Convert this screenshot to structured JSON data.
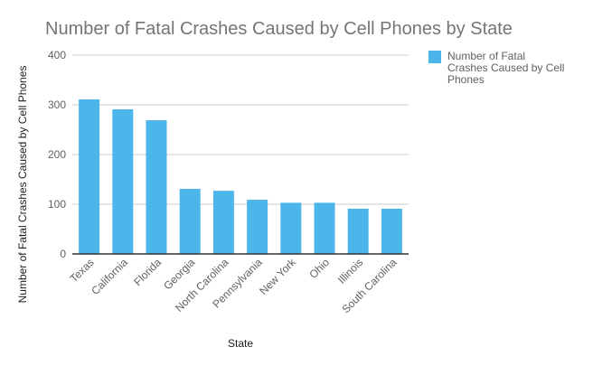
{
  "chart_data": {
    "type": "bar",
    "title": "Number of Fatal Crashes Caused by Cell Phones by State",
    "xlabel": "State",
    "ylabel": "Number of Fatal Crashes Caused by Cell Phones",
    "categories": [
      "Texas",
      "California",
      "Florida",
      "Georgia",
      "North Carolina",
      "Pennsylvania",
      "New York",
      "Ohio",
      "Illinois",
      "South Carolina"
    ],
    "series": [
      {
        "name": "Number of Fatal Crashes Caused by Cell Phones",
        "values": [
          311,
          291,
          269,
          131,
          127,
          109,
          103,
          103,
          91,
          91
        ],
        "color": "#4cb6ea"
      }
    ],
    "ylim": [
      0,
      400
    ],
    "yticks": [
      0,
      100,
      200,
      300,
      400
    ],
    "grid": true,
    "legend_position": "right",
    "legend_lines": [
      "Number of Fatal",
      "Crashes Caused by Cell",
      "Phones"
    ]
  }
}
